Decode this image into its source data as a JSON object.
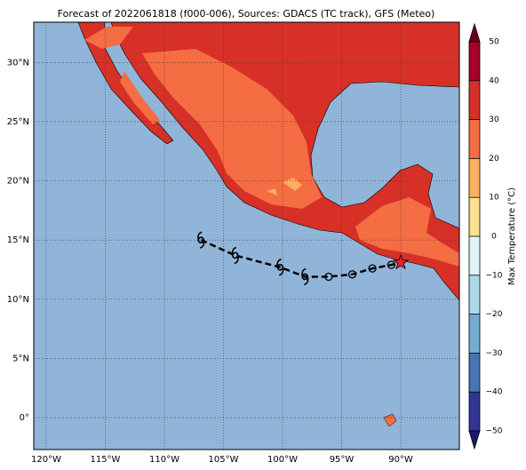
{
  "chart_data": {
    "type": "map",
    "title": "Forecast of 2022061818 (f000-006), Sources: GDACS (TC track), GFS (Meteo)",
    "xlim": [
      -121.05,
      -85.04
    ],
    "ylim": [
      -2.7,
      33.4
    ],
    "xticks": [
      {
        "value": -120,
        "label": "120°W"
      },
      {
        "value": -115,
        "label": "115°W"
      },
      {
        "value": -110,
        "label": "110°W"
      },
      {
        "value": -105,
        "label": "105°W"
      },
      {
        "value": -100,
        "label": "100°W"
      },
      {
        "value": -95,
        "label": "95°W"
      },
      {
        "value": -90,
        "label": "90°W"
      }
    ],
    "yticks": [
      {
        "value": 0,
        "label": "0°"
      },
      {
        "value": 5,
        "label": "5°N"
      },
      {
        "value": 10,
        "label": "10°N"
      },
      {
        "value": 15,
        "label": "15°N"
      },
      {
        "value": 20,
        "label": "20°N"
      },
      {
        "value": 25,
        "label": "25°N"
      },
      {
        "value": 30,
        "label": "30°N"
      }
    ],
    "grid": true,
    "track": {
      "lon": [
        -106.9,
        -104.0,
        -100.2,
        -98.1,
        -96.1,
        -94.1,
        -92.4,
        -90.8,
        -90.0
      ],
      "lat": [
        15.0,
        13.7,
        12.7,
        11.9,
        11.9,
        12.1,
        12.6,
        12.9,
        13.1
      ],
      "markers": [
        "cyclone",
        "cyclone",
        "cyclone",
        "cyclone",
        "circle",
        "circle",
        "circle",
        "circle",
        "star"
      ]
    },
    "colorbar": {
      "label": "Max Temperature (°C)",
      "lim": [
        -50,
        50
      ],
      "ticks": [
        {
          "value": -50,
          "label": "−50"
        },
        {
          "value": -40,
          "label": "−40"
        },
        {
          "value": -30,
          "label": "−30"
        },
        {
          "value": -20,
          "label": "−20"
        },
        {
          "value": -10,
          "label": "−10"
        },
        0,
        10,
        20,
        30,
        40,
        50
      ],
      "colors": [
        "#313695",
        "#4575b4",
        "#74add1",
        "#abd9e9",
        "#e0f3f8",
        "#fee090",
        "#fdae61",
        "#f46d43",
        "#d73027",
        "#a50026"
      ]
    }
  }
}
